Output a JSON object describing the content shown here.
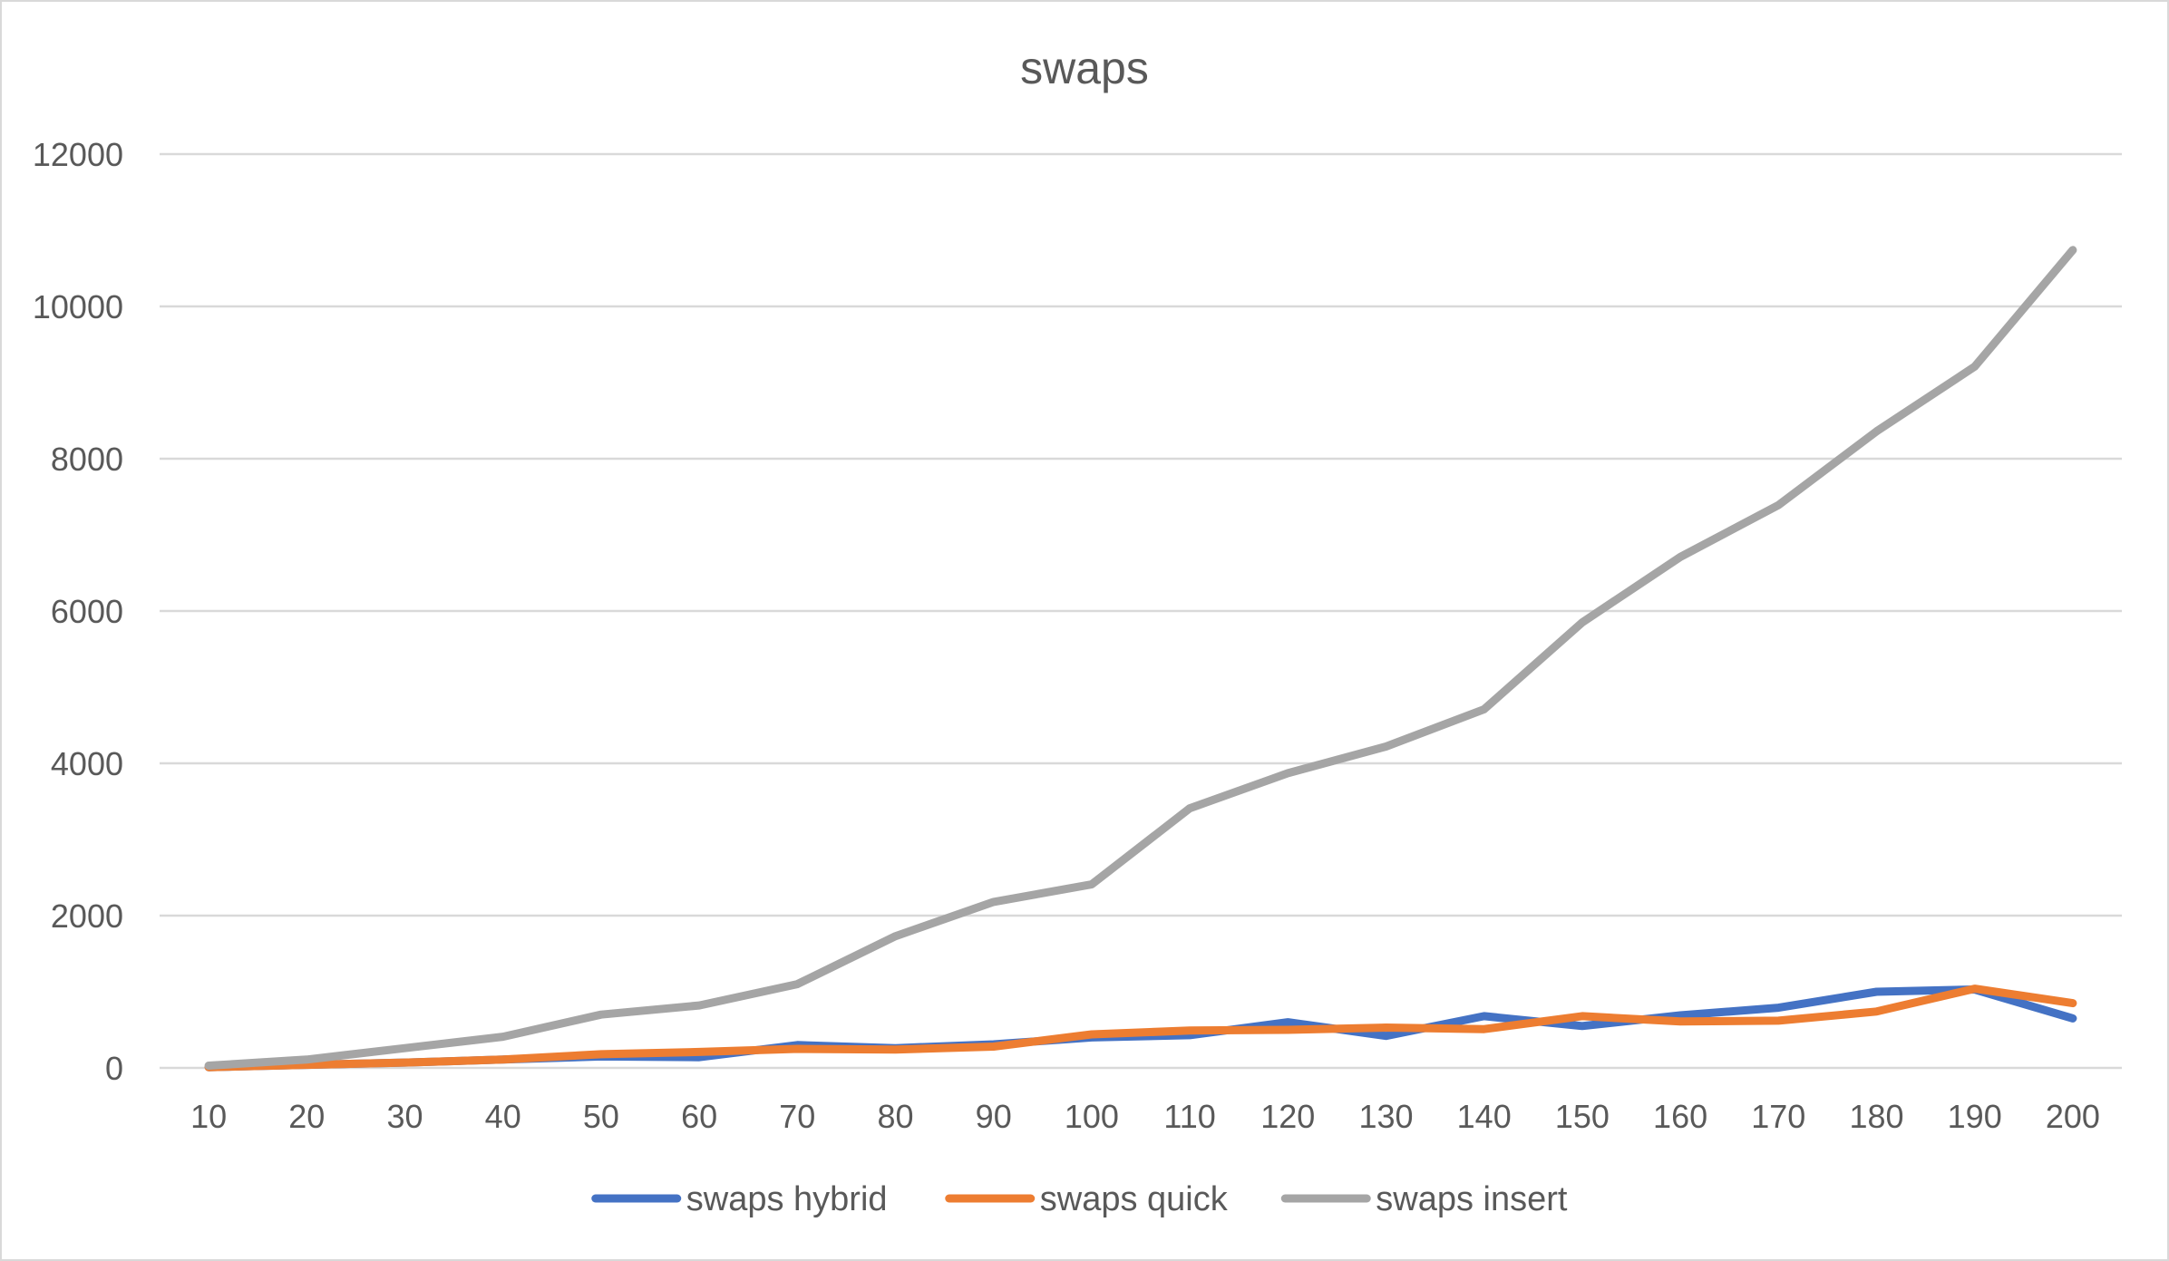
{
  "chart_data": {
    "type": "line",
    "title": "swaps",
    "xlabel": "",
    "ylabel": "",
    "categories": [
      "10",
      "20",
      "30",
      "40",
      "50",
      "60",
      "70",
      "80",
      "90",
      "100",
      "110",
      "120",
      "130",
      "140",
      "150",
      "160",
      "170",
      "180",
      "190",
      "200"
    ],
    "ylim": [
      0,
      12000
    ],
    "yticks": [
      "0",
      "2000",
      "4000",
      "6000",
      "8000",
      "10000",
      "12000"
    ],
    "grid": true,
    "legend_position": "bottom",
    "series": [
      {
        "name": "swaps hybrid",
        "color": "#4472C4",
        "values": [
          10,
          40,
          70,
          110,
          150,
          140,
          300,
          260,
          310,
          400,
          430,
          600,
          420,
          680,
          550,
          690,
          790,
          1000,
          1030,
          650
        ]
      },
      {
        "name": "swaps quick",
        "color": "#ED7D31",
        "values": [
          10,
          40,
          70,
          110,
          180,
          210,
          250,
          240,
          280,
          440,
          490,
          500,
          530,
          510,
          680,
          610,
          620,
          740,
          1040,
          850
        ]
      },
      {
        "name": "swaps insert",
        "color": "#A5A5A5",
        "values": [
          30,
          110,
          260,
          410,
          700,
          820,
          1100,
          1730,
          2180,
          2410,
          3410,
          3870,
          4220,
          4710,
          5850,
          6710,
          7390,
          8360,
          9210,
          10740
        ]
      }
    ]
  }
}
